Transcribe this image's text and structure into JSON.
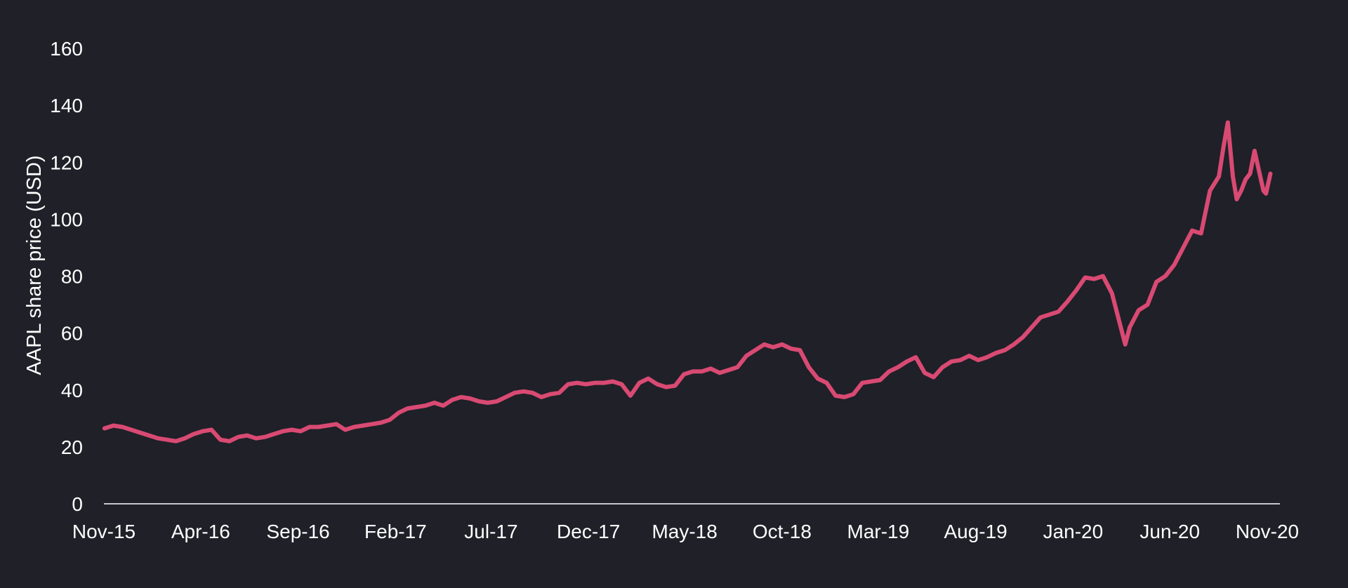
{
  "chart_data": {
    "type": "line",
    "title": "",
    "xlabel": "",
    "ylabel": "AAPL share price (USD)",
    "ylim": [
      0,
      160
    ],
    "yticks": [
      0,
      20,
      40,
      60,
      80,
      100,
      120,
      140,
      160
    ],
    "xlim": [
      "2015-11-01",
      "2020-11-01"
    ],
    "xticks": [
      {
        "date": "2015-11-01",
        "label": "Nov-15"
      },
      {
        "date": "2016-04-01",
        "label": "Apr-16"
      },
      {
        "date": "2016-09-01",
        "label": "Sep-16"
      },
      {
        "date": "2017-02-01",
        "label": "Feb-17"
      },
      {
        "date": "2017-07-01",
        "label": "Jul-17"
      },
      {
        "date": "2017-12-01",
        "label": "Dec-17"
      },
      {
        "date": "2018-05-01",
        "label": "May-18"
      },
      {
        "date": "2018-10-01",
        "label": "Oct-18"
      },
      {
        "date": "2019-03-01",
        "label": "Mar-19"
      },
      {
        "date": "2019-08-01",
        "label": "Aug-19"
      },
      {
        "date": "2020-01-01",
        "label": "Jan-20"
      },
      {
        "date": "2020-06-01",
        "label": "Jun-20"
      },
      {
        "date": "2020-11-01",
        "label": "Nov-20"
      }
    ],
    "grid": false,
    "legend": "none",
    "colors": {
      "background": "#1f2028",
      "series": "#d94a73",
      "text": "#ffffff",
      "baseline": "#ffffff"
    },
    "series": [
      {
        "x": [
          "2015-11-02",
          "2015-11-16",
          "2015-11-30",
          "2015-12-14",
          "2015-12-28",
          "2016-01-11",
          "2016-01-25",
          "2016-02-08",
          "2016-02-22",
          "2016-03-07",
          "2016-03-21",
          "2016-04-04",
          "2016-04-18",
          "2016-05-02",
          "2016-05-16",
          "2016-05-30",
          "2016-06-13",
          "2016-06-27",
          "2016-07-11",
          "2016-07-25",
          "2016-08-08",
          "2016-08-22",
          "2016-09-05",
          "2016-09-19",
          "2016-10-03",
          "2016-10-17",
          "2016-10-31",
          "2016-11-14",
          "2016-11-28",
          "2016-12-12",
          "2016-12-26",
          "2017-01-09",
          "2017-01-23",
          "2017-02-06",
          "2017-02-20",
          "2017-03-06",
          "2017-03-20",
          "2017-04-03",
          "2017-04-17",
          "2017-05-01",
          "2017-05-15",
          "2017-05-29",
          "2017-06-12",
          "2017-06-26",
          "2017-07-10",
          "2017-07-24",
          "2017-08-07",
          "2017-08-21",
          "2017-09-04",
          "2017-09-18",
          "2017-10-02",
          "2017-10-16",
          "2017-10-30",
          "2017-11-13",
          "2017-11-27",
          "2017-12-11",
          "2017-12-25",
          "2018-01-08",
          "2018-01-22",
          "2018-02-05",
          "2018-02-19",
          "2018-03-05",
          "2018-03-19",
          "2018-04-02",
          "2018-04-16",
          "2018-04-30",
          "2018-05-14",
          "2018-05-28",
          "2018-06-11",
          "2018-06-25",
          "2018-07-09",
          "2018-07-23",
          "2018-08-06",
          "2018-08-20",
          "2018-09-03",
          "2018-09-17",
          "2018-10-01",
          "2018-10-15",
          "2018-10-29",
          "2018-11-12",
          "2018-11-26",
          "2018-12-10",
          "2018-12-24",
          "2019-01-07",
          "2019-01-21",
          "2019-02-04",
          "2019-02-18",
          "2019-03-04",
          "2019-03-18",
          "2019-04-01",
          "2019-04-15",
          "2019-04-29",
          "2019-05-13",
          "2019-05-27",
          "2019-06-10",
          "2019-06-24",
          "2019-07-08",
          "2019-07-22",
          "2019-08-05",
          "2019-08-19",
          "2019-09-02",
          "2019-09-16",
          "2019-09-30",
          "2019-10-14",
          "2019-10-28",
          "2019-11-11",
          "2019-11-25",
          "2019-12-09",
          "2019-12-23",
          "2020-01-06",
          "2020-01-20",
          "2020-02-03",
          "2020-02-17",
          "2020-03-02",
          "2020-03-16",
          "2020-03-23",
          "2020-03-30",
          "2020-04-13",
          "2020-04-27",
          "2020-05-11",
          "2020-05-25",
          "2020-06-08",
          "2020-06-22",
          "2020-07-06",
          "2020-07-20",
          "2020-08-03",
          "2020-08-17",
          "2020-08-24",
          "2020-08-31",
          "2020-09-08",
          "2020-09-14",
          "2020-09-21",
          "2020-09-28",
          "2020-10-05",
          "2020-10-12",
          "2020-10-19",
          "2020-10-26",
          "2020-10-30",
          "2020-11-06"
        ],
        "values": [
          26.5,
          27.5,
          27.0,
          26.0,
          25.0,
          24.0,
          23.0,
          22.5,
          22.0,
          23.0,
          24.5,
          25.5,
          26.0,
          22.5,
          22.0,
          23.5,
          24.0,
          23.0,
          23.5,
          24.5,
          25.5,
          26.0,
          25.5,
          27.0,
          27.0,
          27.5,
          28.0,
          26.0,
          27.0,
          27.5,
          28.0,
          28.5,
          29.5,
          32.0,
          33.5,
          34.0,
          34.5,
          35.5,
          34.5,
          36.5,
          37.5,
          37.0,
          36.0,
          35.5,
          36.0,
          37.5,
          39.0,
          39.5,
          39.0,
          37.5,
          38.5,
          39.0,
          42.0,
          42.5,
          42.0,
          42.5,
          42.5,
          43.0,
          42.0,
          38.0,
          42.5,
          44.0,
          42.0,
          41.0,
          41.5,
          45.5,
          46.5,
          46.5,
          47.5,
          46.0,
          47.0,
          48.0,
          52.0,
          54.0,
          56.0,
          55.0,
          56.0,
          54.5,
          54.0,
          48.0,
          44.0,
          42.5,
          38.0,
          37.5,
          38.5,
          42.5,
          43.0,
          43.5,
          46.5,
          48.0,
          50.0,
          51.5,
          46.0,
          44.5,
          48.0,
          50.0,
          50.5,
          52.0,
          50.5,
          51.5,
          53.0,
          54.0,
          56.0,
          58.5,
          62.0,
          65.5,
          66.5,
          67.5,
          71.0,
          75.0,
          79.5,
          79.0,
          80.0,
          74.0,
          62.0,
          56.0,
          62.0,
          68.0,
          70.0,
          78.0,
          80.0,
          84.0,
          90.0,
          96.0,
          95.0,
          110.0,
          115.0,
          125.0,
          134.0,
          115.0,
          107.0,
          110.0,
          114.0,
          116.0,
          124.0,
          117.0,
          110.0,
          109.0,
          116.0
        ]
      }
    ]
  }
}
